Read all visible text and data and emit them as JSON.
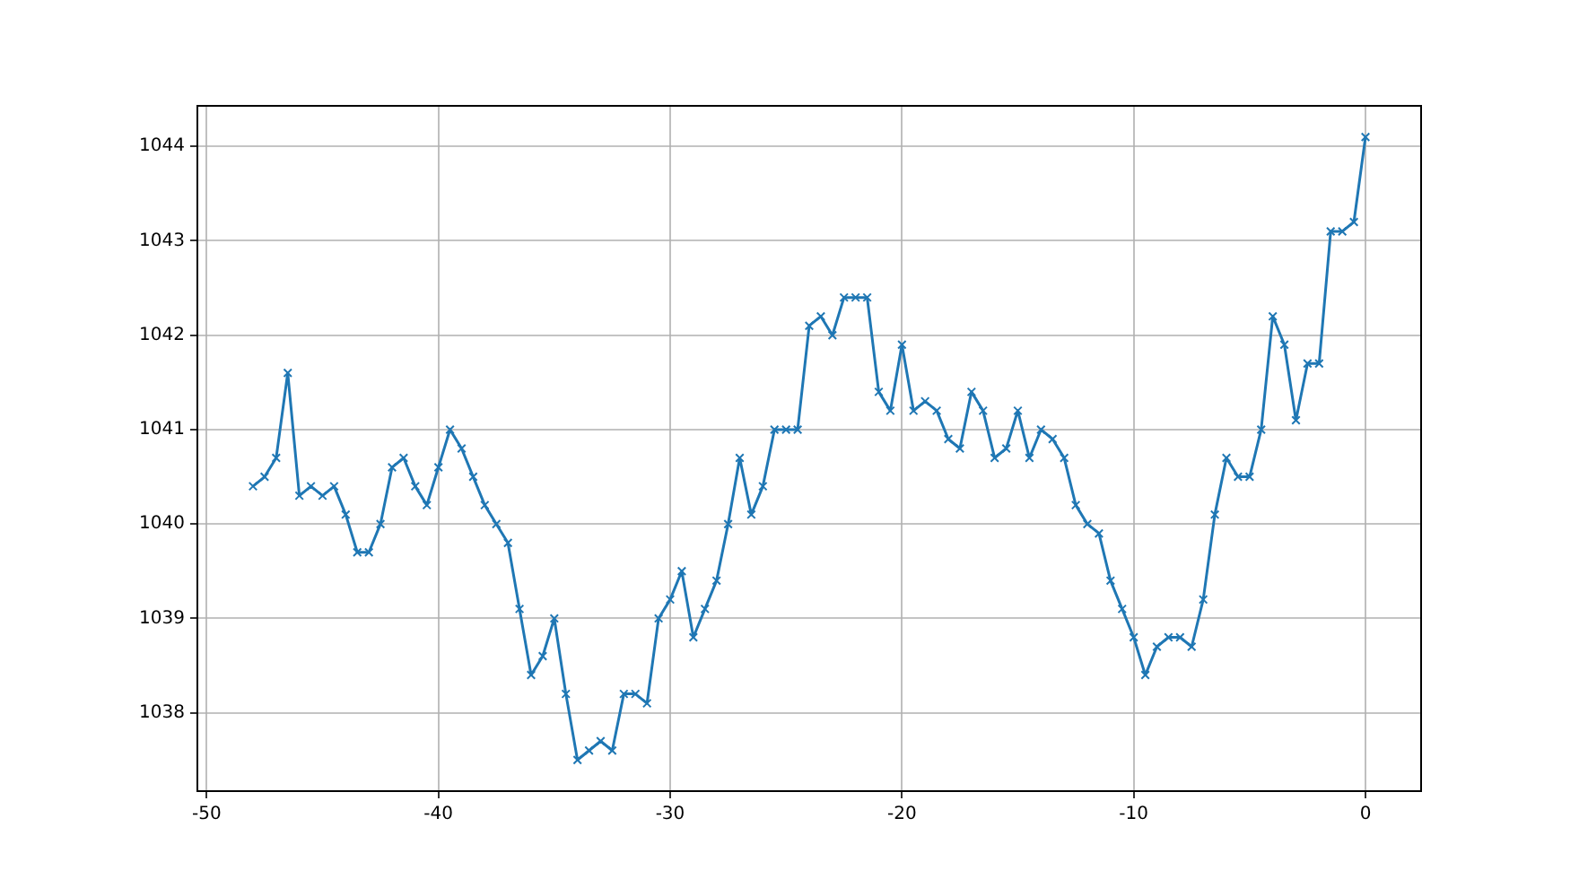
{
  "chart_data": {
    "type": "line",
    "marker": "cross",
    "grid": true,
    "xlim": [
      -50.4,
      2.4
    ],
    "ylim": [
      1037.17,
      1044.43
    ],
    "xticks": [
      -50,
      -40,
      -30,
      -20,
      -10,
      0
    ],
    "yticks": [
      1038,
      1039,
      1040,
      1041,
      1042,
      1043,
      1044
    ],
    "x": [
      -48,
      -47.5,
      -47,
      -46.5,
      -46,
      -45.5,
      -45,
      -44.5,
      -44,
      -43.5,
      -43,
      -42.5,
      -42,
      -41.5,
      -41,
      -40.5,
      -40,
      -39.5,
      -39,
      -38.5,
      -38,
      -37.5,
      -37,
      -36.5,
      -36,
      -35.5,
      -35,
      -34.5,
      -34,
      -33.5,
      -33,
      -32.5,
      -32,
      -31.5,
      -31,
      -30.5,
      -30,
      -29.5,
      -29,
      -28.5,
      -28,
      -27.5,
      -27,
      -26.5,
      -26,
      -25.5,
      -25,
      -24.5,
      -24,
      -23.5,
      -23,
      -22.5,
      -22,
      -21.5,
      -21,
      -20.5,
      -20,
      -19.5,
      -19,
      -18.5,
      -18,
      -17.5,
      -17,
      -16.5,
      -16,
      -15.5,
      -15,
      -14.5,
      -14,
      -13.5,
      -13,
      -12.5,
      -12,
      -11.5,
      -11,
      -10.5,
      -10,
      -9.5,
      -9,
      -8.5,
      -8,
      -7.5,
      -7,
      -6.5,
      -6,
      -5.5,
      -5,
      -4.5,
      -4,
      -3.5,
      -3,
      -2.5,
      -2,
      -1.5,
      -1,
      -0.5,
      0
    ],
    "series": [
      {
        "color": "#1f77b4",
        "values": [
          1040.4,
          1040.5,
          1040.7,
          1041.6,
          1040.3,
          1040.4,
          1040.3,
          1040.4,
          1040.1,
          1039.7,
          1039.7,
          1040.0,
          1040.6,
          1040.7,
          1040.4,
          1040.2,
          1040.6,
          1041.0,
          1040.8,
          1040.5,
          1040.2,
          1040.0,
          1039.8,
          1039.1,
          1038.4,
          1038.6,
          1039.0,
          1038.2,
          1037.5,
          1037.6,
          1037.7,
          1037.6,
          1038.2,
          1038.2,
          1038.1,
          1039.0,
          1039.2,
          1039.5,
          1038.8,
          1039.1,
          1039.4,
          1040.0,
          1040.7,
          1040.1,
          1040.4,
          1041.0,
          1041.0,
          1041.0,
          1042.1,
          1042.2,
          1042.0,
          1042.4,
          1042.4,
          1042.4,
          1041.4,
          1041.2,
          1041.9,
          1041.2,
          1041.3,
          1041.2,
          1040.9,
          1040.8,
          1041.4,
          1041.2,
          1040.7,
          1040.8,
          1041.2,
          1040.7,
          1041.0,
          1040.9,
          1040.7,
          1040.2,
          1040.0,
          1039.9,
          1039.4,
          1039.1,
          1038.8,
          1038.4,
          1038.7,
          1038.8,
          1038.8,
          1038.7,
          1039.2,
          1040.1,
          1040.7,
          1040.5,
          1040.5,
          1041.0,
          1042.2,
          1041.9,
          1041.1,
          1041.7,
          1041.7,
          1043.1,
          1043.1,
          1043.2,
          1044.1
        ]
      }
    ]
  }
}
